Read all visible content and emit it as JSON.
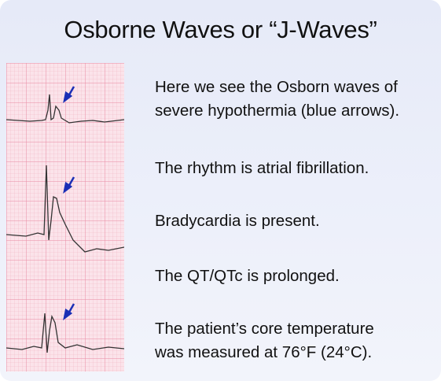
{
  "slide": {
    "title": "Osborne Waves or “J-Waves”",
    "notes": [
      [
        "Here we see the Osborn waves of",
        "severe hypothermia (blue arrows)."
      ],
      [
        "The rhythm is atrial fibrillation."
      ],
      [
        "Bradycardia is present."
      ],
      [
        "The QT/QTc is prolonged."
      ],
      [
        "The patient’s core temperature",
        "was measured at 76°F (24°C)."
      ]
    ]
  }
}
